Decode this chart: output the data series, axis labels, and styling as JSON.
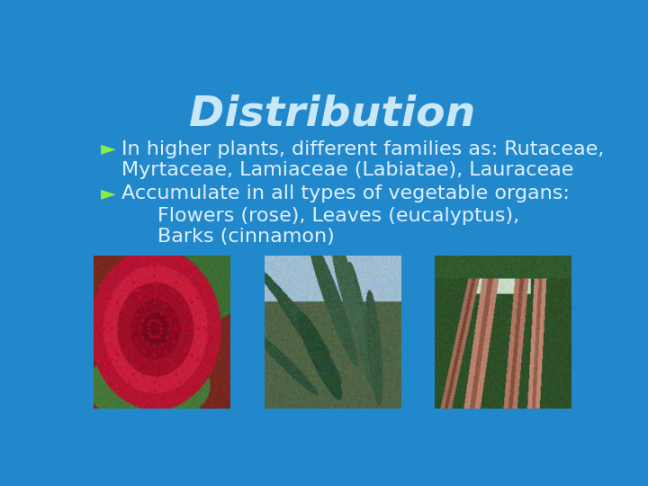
{
  "title": "Distribution",
  "title_color": "#c8e8f8",
  "title_fontsize": 34,
  "background_color": "#2288cc",
  "bullet_color": "#88ee44",
  "text_color": "#e0f0ff",
  "bullet1_line1": "In higher plants, different families as: Rutaceae,",
  "bullet1_line2": "Myrtaceae, Lamiaceae (Labiatae), Lauraceae",
  "bullet2_line1": "Accumulate in all types of vegetable organs:",
  "sub1": "Flowers (rose), Leaves (eucalyptus),",
  "sub2": "Barks (cinnamon)",
  "bullet_marker": "►",
  "text_fontsize": 16,
  "sub_fontsize": 16,
  "watermark_color": "#1a7ab8"
}
